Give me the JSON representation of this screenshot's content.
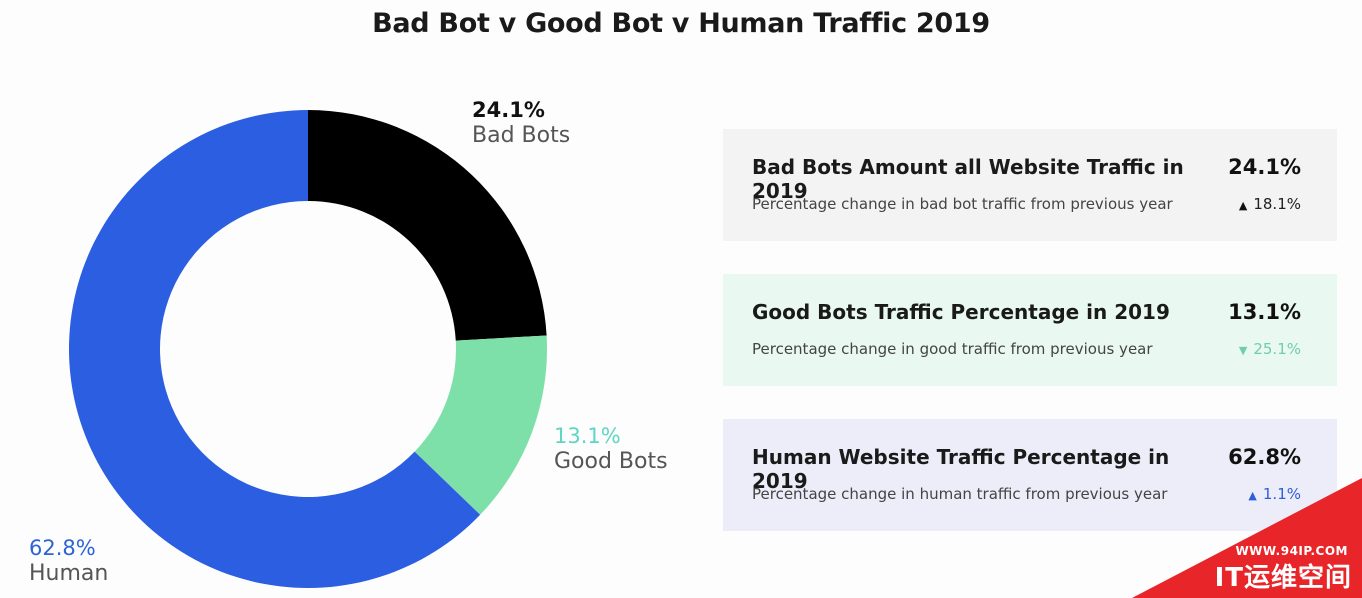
{
  "chart_data": {
    "type": "pie",
    "title": "Bad Bot v Good Bot v Human Traffic 2019",
    "series": [
      {
        "name": "Bad Bots",
        "value": 24.1,
        "label": "24.1%",
        "color": "#000000",
        "label_color": "#111111"
      },
      {
        "name": "Good Bots",
        "value": 13.1,
        "label": "13.1%",
        "color": "#7ee0a9",
        "label_color": "#5ed6c2"
      },
      {
        "name": "Human",
        "value": 62.8,
        "label": "62.8%",
        "color": "#2b5ee0",
        "label_color": "#2e63d6"
      }
    ],
    "donut": true
  },
  "cards": [
    {
      "heading": "Bad Bots Amount all Website Traffic in 2019",
      "value": "24.1%",
      "subtext": "Percentage change in bad bot traffic from previous year",
      "change": "18.1%",
      "arrow": "▲",
      "arrow_color": "#111111",
      "change_color": "#222222",
      "background": "#f3f3f3"
    },
    {
      "heading": "Good Bots Traffic Percentage in 2019",
      "value": "13.1%",
      "subtext": "Percentage change in good traffic from previous year",
      "change": "25.1%",
      "arrow": "▼",
      "arrow_color": "#6fcfaa",
      "change_color": "#6fcfaa",
      "background": "#e9f8f0"
    },
    {
      "heading": "Human Website Traffic Percentage in 2019",
      "value": "62.8%",
      "subtext": "Percentage change in human traffic from previous year",
      "change": "1.1%",
      "arrow": "▲",
      "arrow_color": "#2e5fd6",
      "change_color": "#2e5fd6",
      "background": "#ededf9"
    }
  ],
  "watermark": {
    "url": "WWW.94IP.COM",
    "brand": "IT运维空间",
    "color": "#e8262a"
  }
}
